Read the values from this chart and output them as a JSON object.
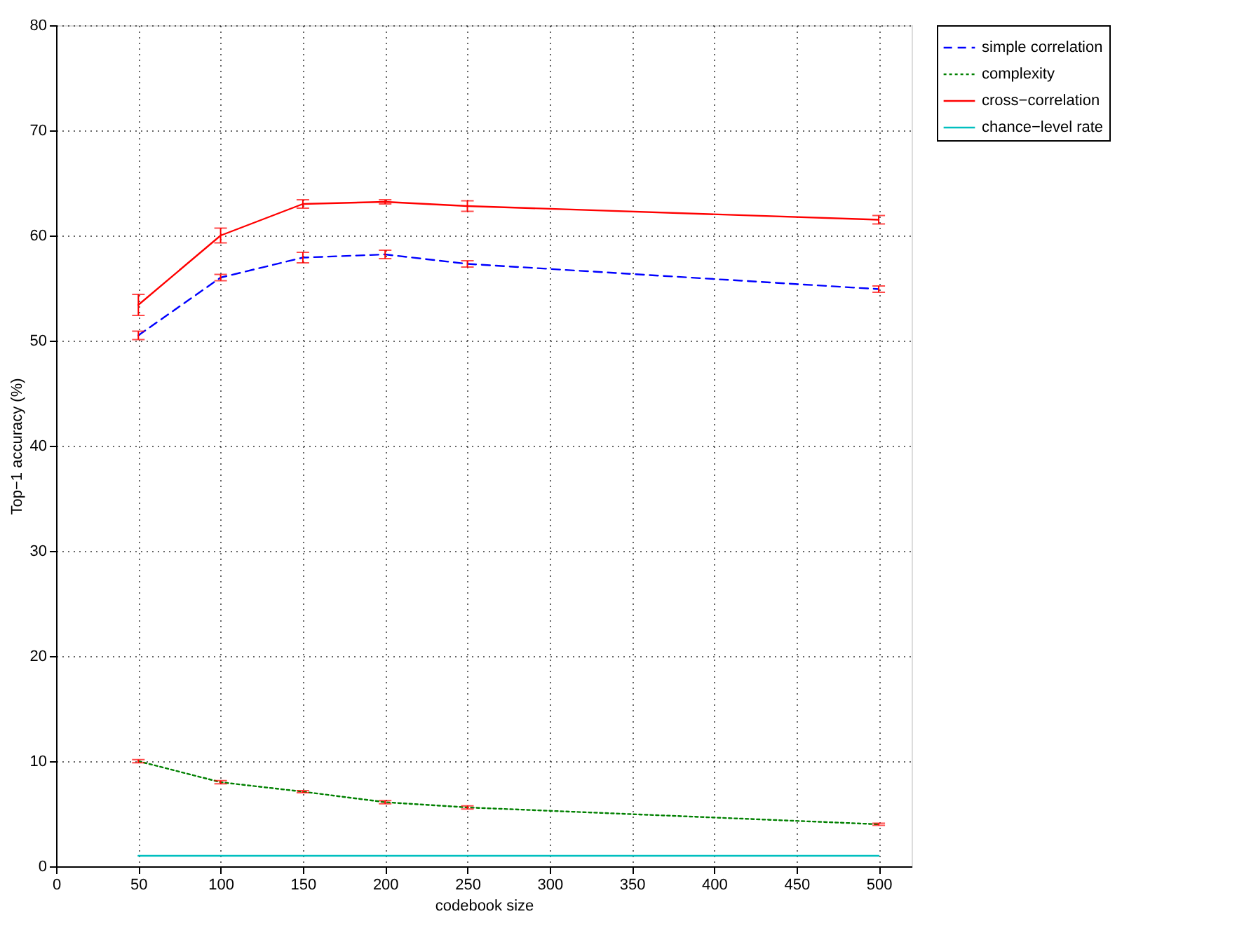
{
  "chart_data": {
    "type": "line",
    "xlabel": "codebook size",
    "ylabel": "Top−1 accuracy (%)",
    "x": [
      50,
      100,
      150,
      200,
      250,
      500
    ],
    "series": [
      {
        "name": "simple correlation",
        "color": "#0000ff",
        "line_style": "dashed",
        "values": [
          50.5,
          56,
          57.9,
          58.2,
          57.3,
          54.9
        ],
        "errors": [
          0.4,
          0.3,
          0.5,
          0.4,
          0.3,
          0.3
        ]
      },
      {
        "name": "complexity",
        "color": "#008000",
        "line_style": "dotted",
        "values": [
          10,
          8,
          7.1,
          6.1,
          5.6,
          4.0
        ],
        "errors": [
          0.15,
          0.15,
          0.1,
          0.15,
          0.15,
          0.1
        ]
      },
      {
        "name": "cross−correlation",
        "color": "#ff0000",
        "line_style": "solid",
        "values": [
          53.4,
          60,
          63,
          63.2,
          62.8,
          61.5
        ],
        "errors": [
          1.0,
          0.7,
          0.4,
          0.2,
          0.5,
          0.4
        ]
      },
      {
        "name": "chance−level rate",
        "color": "#00bfbf",
        "line_style": "solid",
        "values": [
          1,
          1,
          1,
          1,
          1,
          1
        ]
      }
    ],
    "xlim": [
      0,
      520
    ],
    "xticks": [
      0,
      50,
      100,
      150,
      200,
      250,
      300,
      350,
      400,
      450,
      500
    ],
    "ylim": [
      0,
      80
    ],
    "yticks": [
      0,
      10,
      20,
      30,
      40,
      50,
      60,
      70,
      80
    ],
    "grid": true,
    "legend": "right",
    "marker": "none"
  }
}
